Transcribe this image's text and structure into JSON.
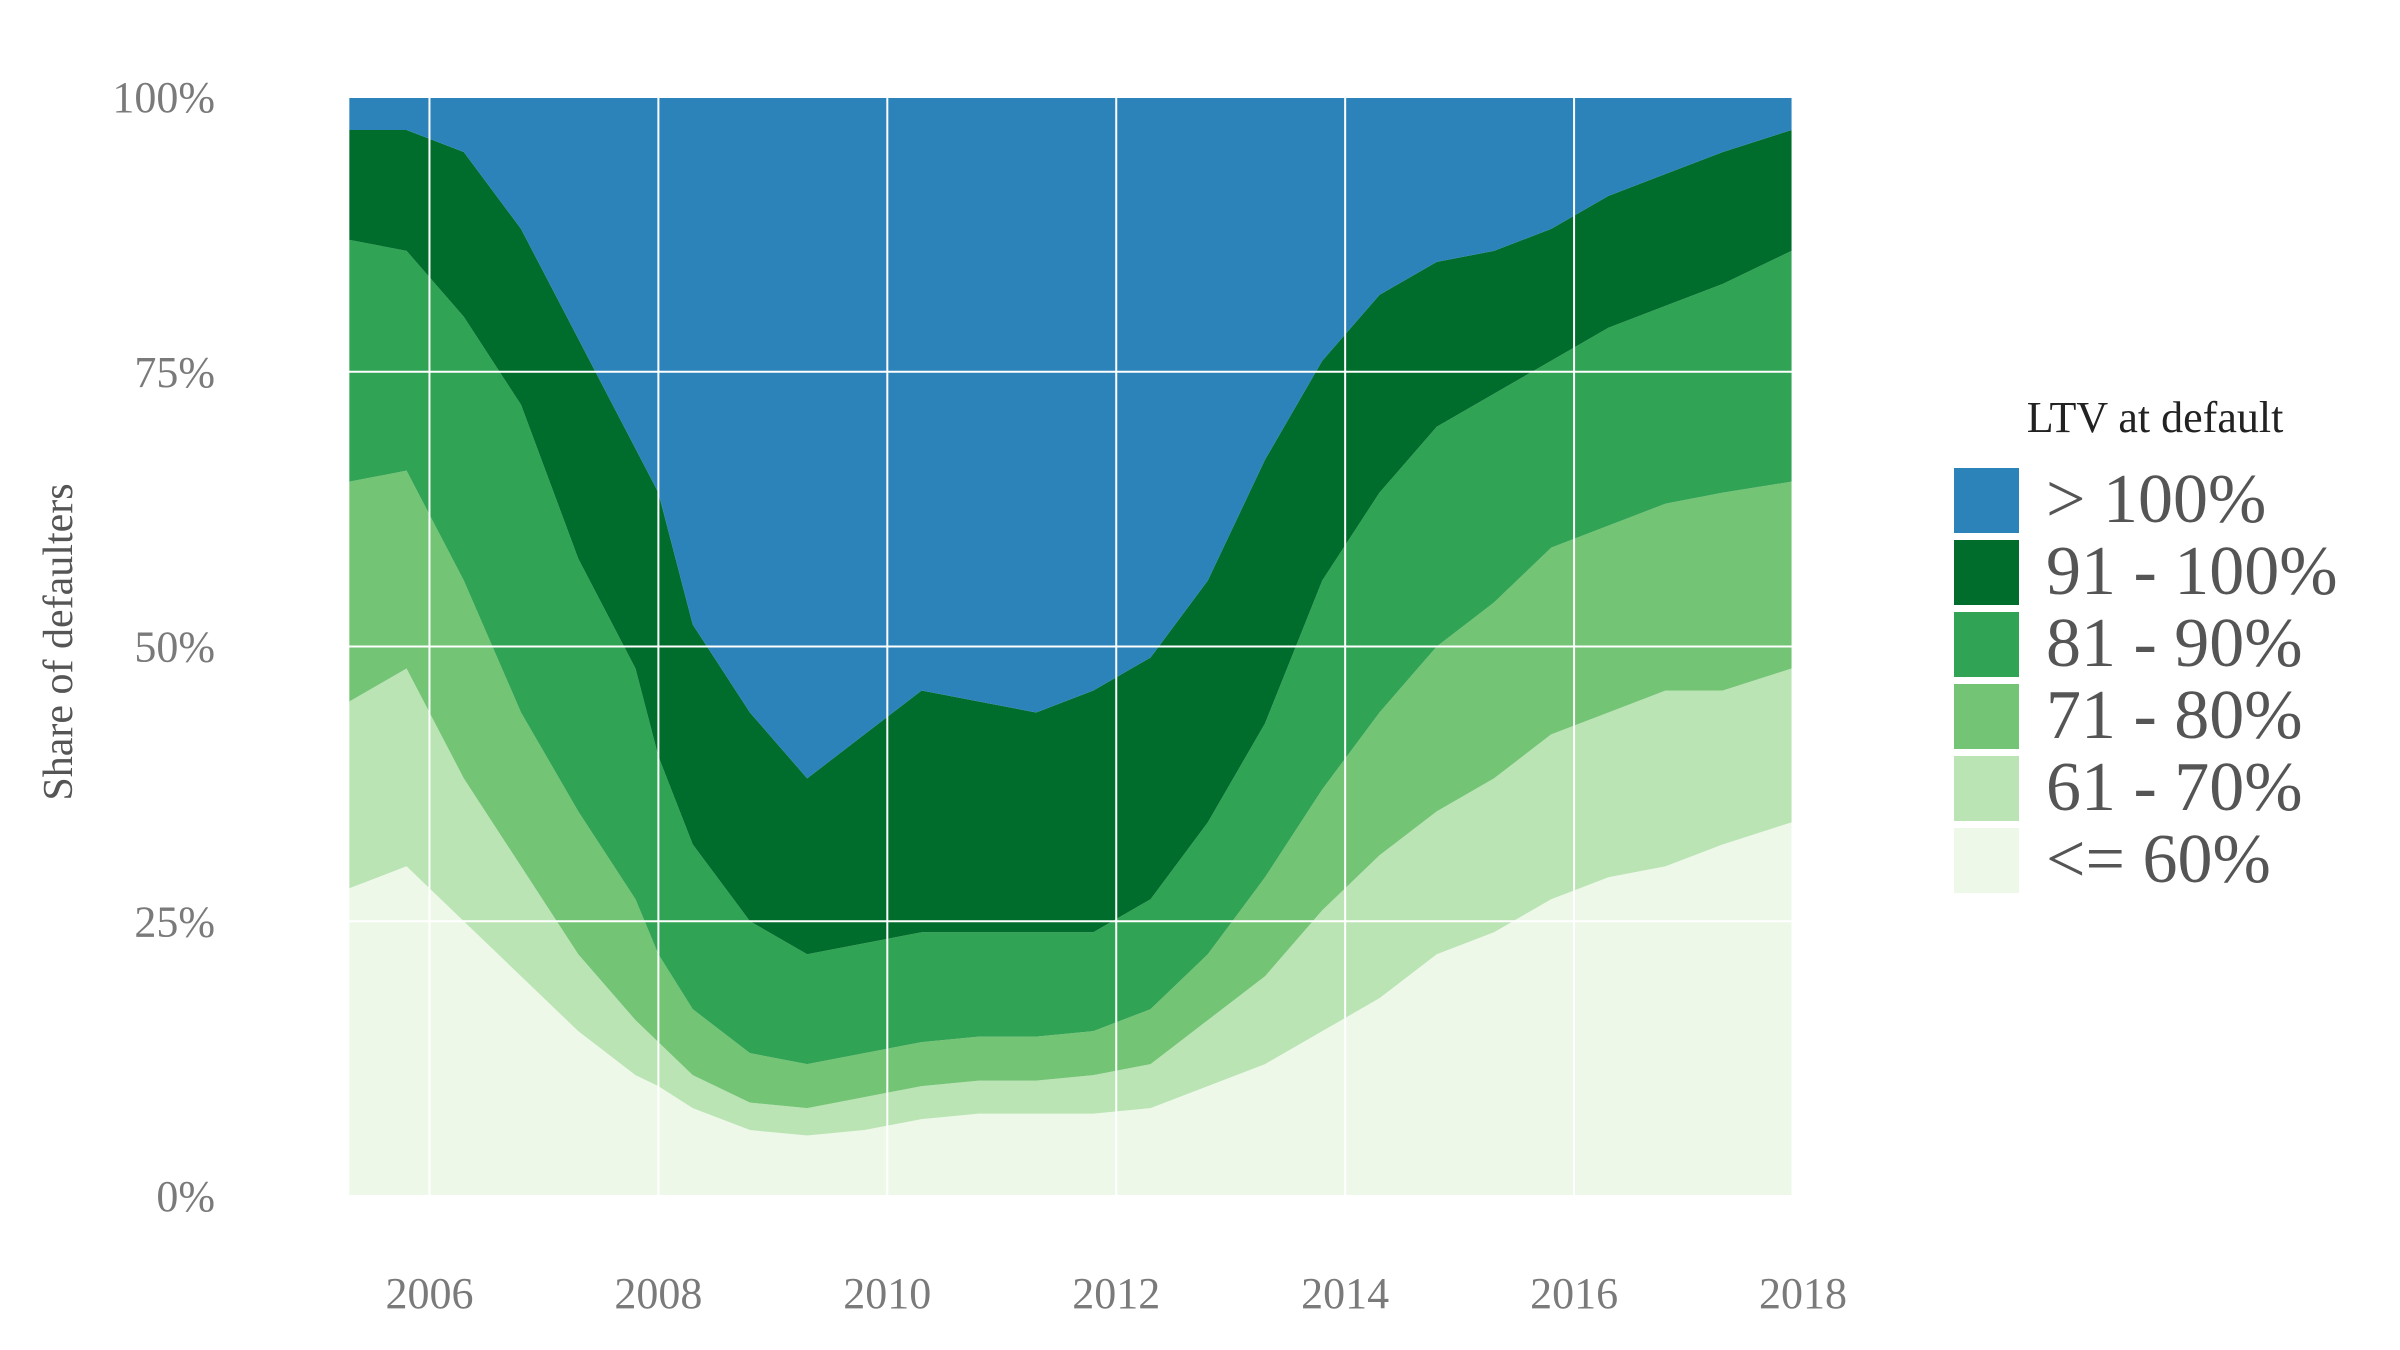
{
  "chart_data": {
    "type": "area",
    "stacked": true,
    "normalized": true,
    "ylabel": "Share of defaulters",
    "xlabel": "",
    "title": "",
    "x_range": [
      2005.3,
      2017.9
    ],
    "xlim": [
      2005.0,
      2018.0
    ],
    "ylim": [
      0,
      100
    ],
    "x_ticks": [
      2006,
      2008,
      2010,
      2012,
      2014,
      2016,
      2018
    ],
    "y_ticks": [
      0,
      25,
      50,
      75,
      100
    ],
    "y_tick_labels": [
      "0%",
      "25%",
      "50%",
      "75%",
      "100%"
    ],
    "x_tick_labels": [
      "2006",
      "2008",
      "2010",
      "2012",
      "2014",
      "2016",
      "2018"
    ],
    "grid": true,
    "legend": {
      "title": "LTV at default",
      "position": "right"
    },
    "boundary_x": [
      2005.3,
      2005.8,
      2006.3,
      2006.8,
      2007.3,
      2007.8,
      2008.0,
      2008.3,
      2008.8,
      2009.3,
      2009.8,
      2010.3,
      2010.8,
      2011.3,
      2011.8,
      2012.3,
      2012.8,
      2013.3,
      2013.8,
      2014.3,
      2014.8,
      2015.3,
      2015.8,
      2016.3,
      2016.8,
      2017.3,
      2017.9
    ],
    "series": [
      {
        "name": "<= 60%",
        "color": "#edf8e9",
        "upper_boundary": [
          28,
          30,
          25,
          20,
          15,
          11,
          10,
          8,
          6,
          5.5,
          6,
          7,
          7.5,
          7.5,
          7.5,
          8,
          10,
          12,
          15,
          18,
          22,
          24,
          27,
          29,
          30,
          32,
          34
        ]
      },
      {
        "name": "61 - 70%",
        "color": "#bae4b3",
        "upper_boundary": [
          45,
          48,
          38,
          30,
          22,
          16,
          14,
          11,
          8.5,
          8,
          9,
          10,
          10.5,
          10.5,
          11,
          12,
          16,
          20,
          26,
          31,
          35,
          38,
          42,
          44,
          46,
          46,
          48
        ]
      },
      {
        "name": "71 - 80%",
        "color": "#74c476",
        "upper_boundary": [
          65,
          66,
          56,
          44,
          35,
          27,
          22,
          17,
          13,
          12,
          13,
          14,
          14.5,
          14.5,
          15,
          17,
          22,
          29,
          37,
          44,
          50,
          54,
          59,
          61,
          63,
          64,
          65
        ]
      },
      {
        "name": "81 - 90%",
        "color": "#31a354",
        "upper_boundary": [
          87,
          86,
          80,
          72,
          58,
          48,
          40,
          32,
          25,
          22,
          23,
          24,
          24,
          24,
          24,
          27,
          34,
          43,
          56,
          64,
          70,
          73,
          76,
          79,
          81,
          83,
          86
        ]
      },
      {
        "name": "91 - 100%",
        "color": "#006d2c",
        "upper_boundary": [
          97,
          97,
          95,
          88,
          78,
          68,
          64,
          52,
          44,
          38,
          42,
          46,
          45,
          44,
          46,
          49,
          56,
          67,
          76,
          82,
          85,
          86,
          88,
          91,
          93,
          95,
          97
        ]
      },
      {
        "name": "> 100%",
        "color": "#2c83ba",
        "upper_boundary": [
          100,
          100,
          100,
          100,
          100,
          100,
          100,
          100,
          100,
          100,
          100,
          100,
          100,
          100,
          100,
          100,
          100,
          100,
          100,
          100,
          100,
          100,
          100,
          100,
          100,
          100,
          100
        ]
      }
    ],
    "legend_order": [
      "> 100%",
      "91 - 100%",
      "81 - 90%",
      "71 - 80%",
      "61 - 70%",
      "<= 60%"
    ]
  }
}
